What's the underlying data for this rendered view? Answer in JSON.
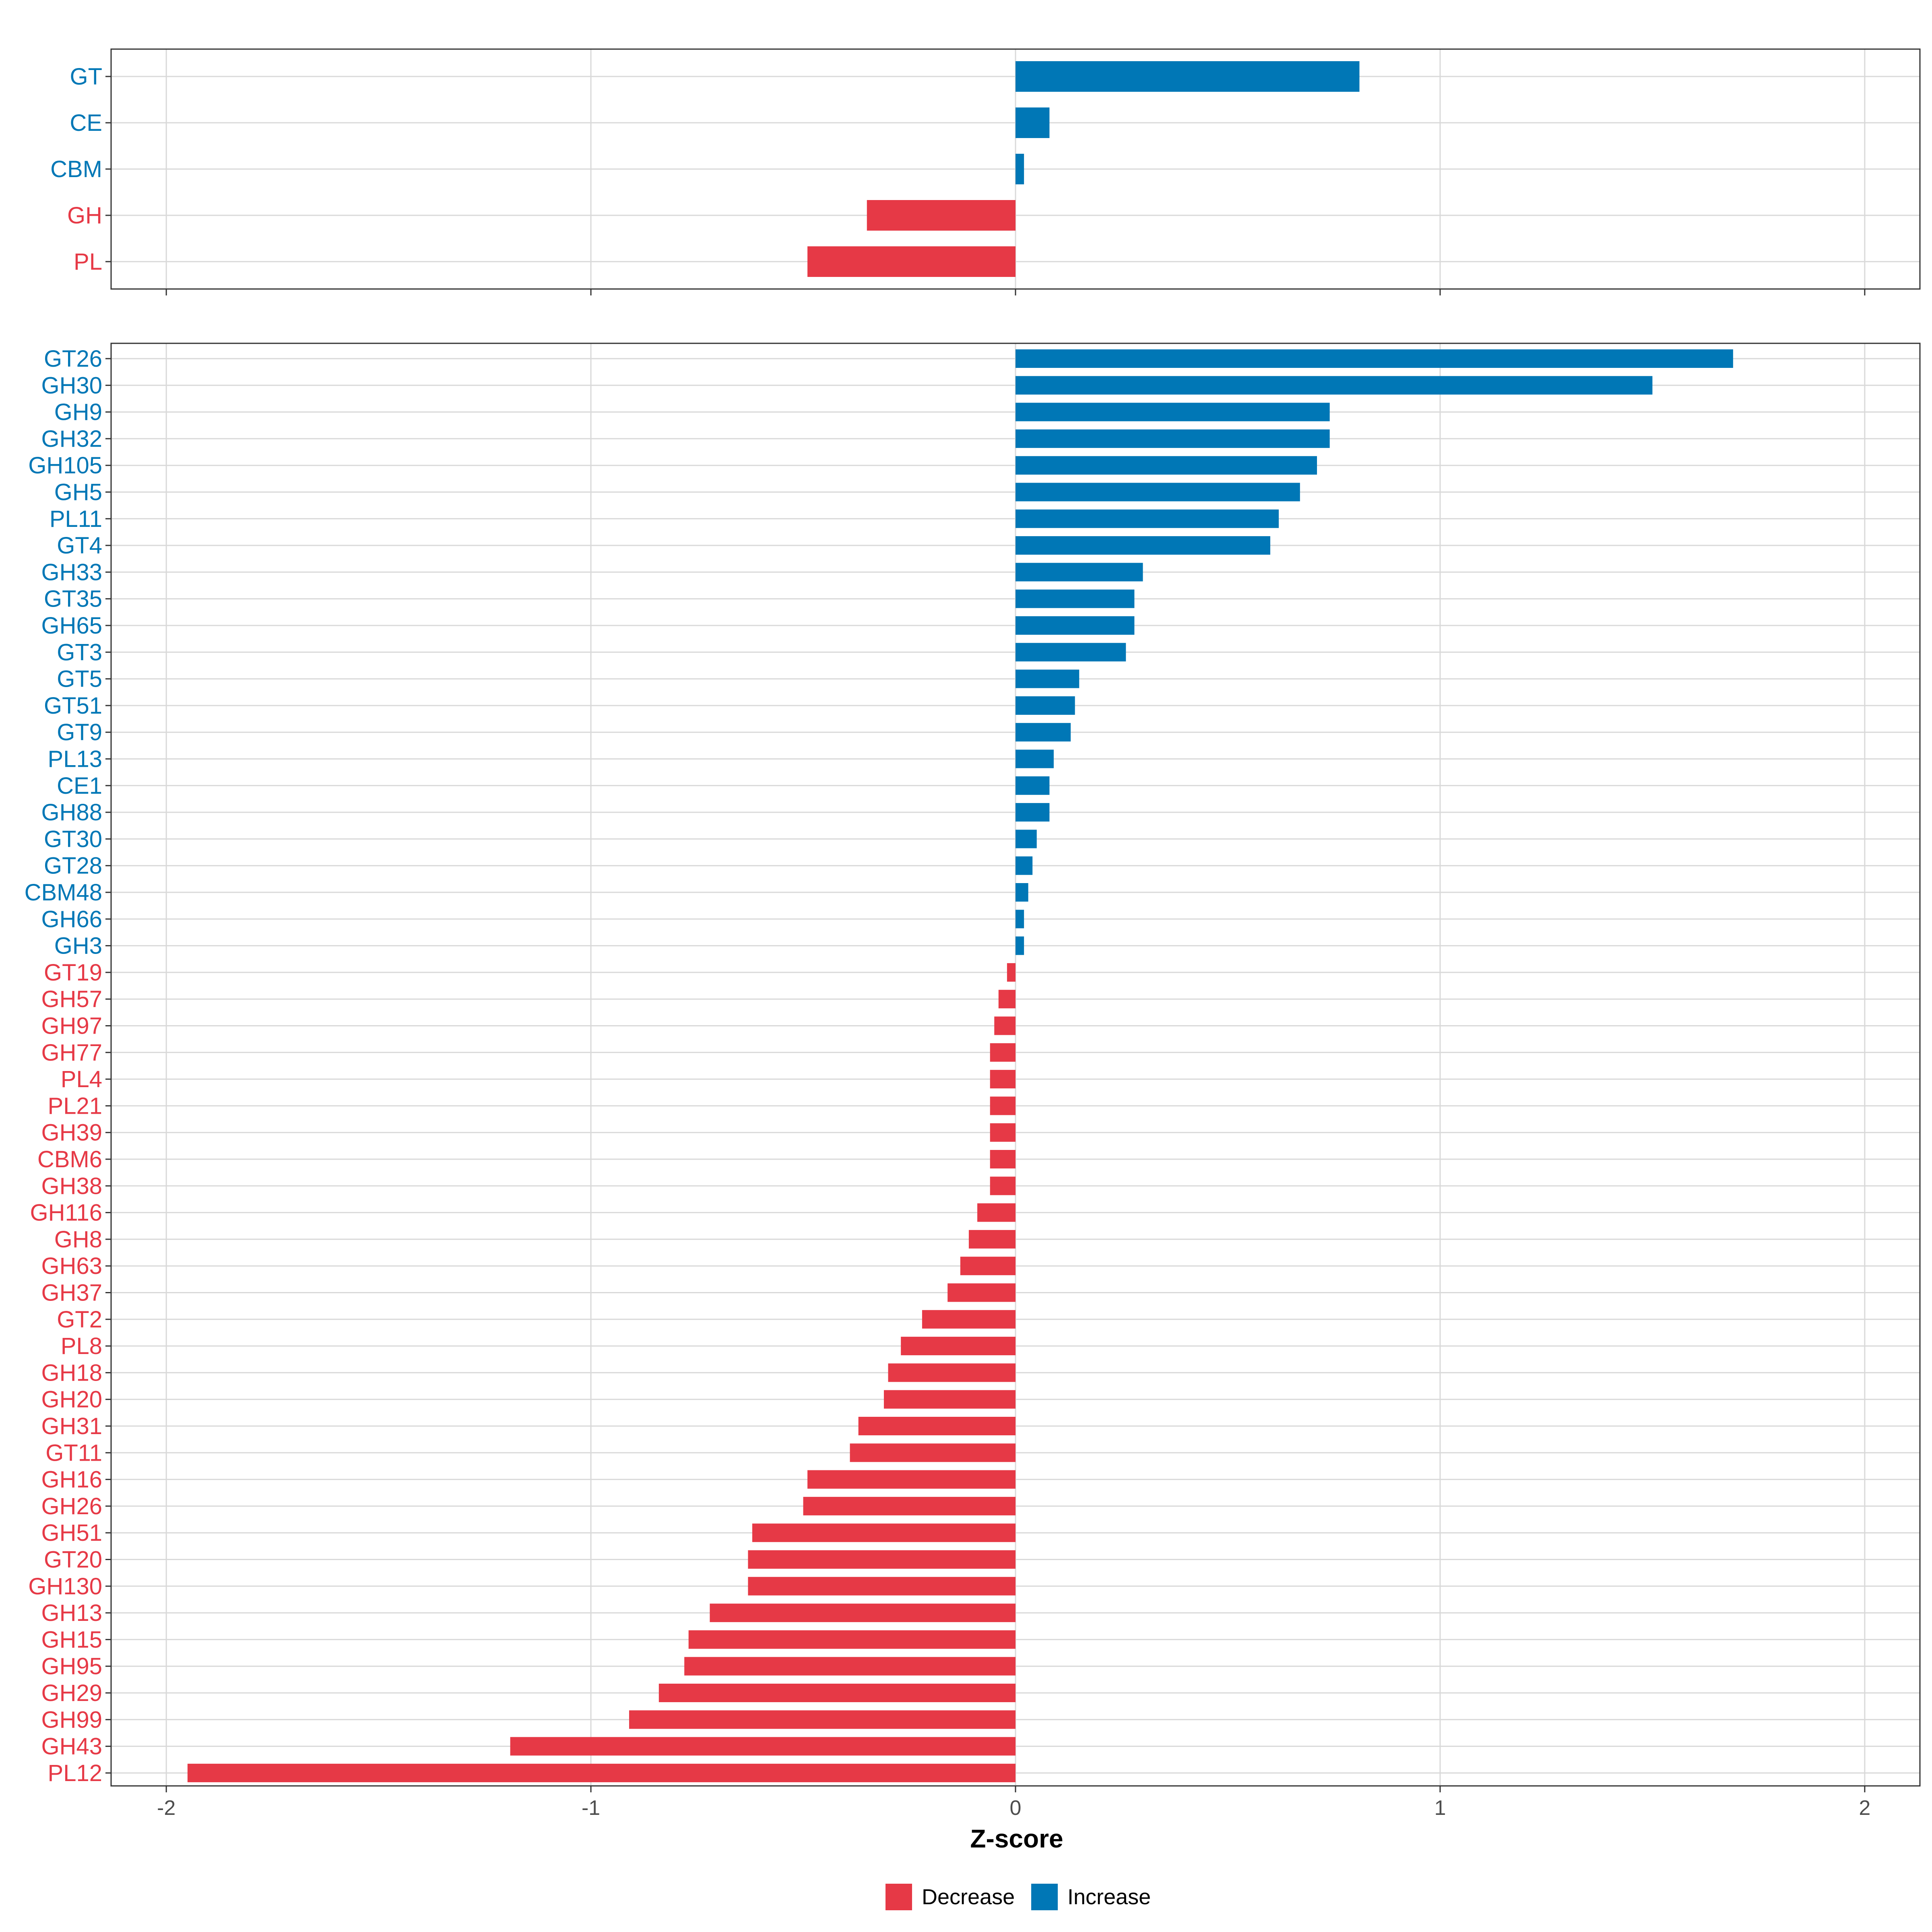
{
  "colors": {
    "decrease": "#E63946",
    "increase": "#0077B6",
    "grid": "#d9d9d9",
    "border": "#333333"
  },
  "chart_data": [
    {
      "type": "bar",
      "orientation": "horizontal",
      "panel": "top",
      "xlim": [
        -2.13,
        2.13
      ],
      "xticks": [
        -2,
        -1,
        0,
        1,
        2
      ],
      "show_tick_labels": false,
      "categories": [
        "GT",
        "CE",
        "CBM",
        "GH",
        "PL"
      ],
      "values": [
        0.81,
        0.08,
        0.02,
        -0.35,
        -0.49
      ]
    },
    {
      "type": "bar",
      "orientation": "horizontal",
      "panel": "bottom",
      "xlim": [
        -2.13,
        2.13
      ],
      "xticks": [
        -2,
        -1,
        0,
        1,
        2
      ],
      "tick_labels": [
        "-2",
        "-1",
        "0",
        "1",
        "2"
      ],
      "show_tick_labels": true,
      "xlabel": "Z-score",
      "categories": [
        "GT26",
        "GH30",
        "GH9",
        "GH32",
        "GH105",
        "GH5",
        "PL11",
        "GT4",
        "GH33",
        "GT35",
        "GH65",
        "GT3",
        "GT5",
        "GT51",
        "GT9",
        "PL13",
        "CE1",
        "GH88",
        "GT30",
        "GT28",
        "CBM48",
        "GH66",
        "GH3",
        "GT19",
        "GH57",
        "GH97",
        "GH77",
        "PL4",
        "PL21",
        "GH39",
        "CBM6",
        "GH38",
        "GH116",
        "GH8",
        "GH63",
        "GH37",
        "GT2",
        "PL8",
        "GH18",
        "GH20",
        "GH31",
        "GT11",
        "GH16",
        "GH26",
        "GH51",
        "GT20",
        "GH130",
        "GH13",
        "GH15",
        "GH95",
        "GH29",
        "GH99",
        "GH43",
        "PL12"
      ],
      "values": [
        1.69,
        1.5,
        0.74,
        0.74,
        0.71,
        0.67,
        0.62,
        0.6,
        0.3,
        0.28,
        0.28,
        0.26,
        0.15,
        0.14,
        0.13,
        0.09,
        0.08,
        0.08,
        0.05,
        0.04,
        0.03,
        0.02,
        0.02,
        -0.02,
        -0.04,
        -0.05,
        -0.06,
        -0.06,
        -0.06,
        -0.06,
        -0.06,
        -0.06,
        -0.09,
        -0.11,
        -0.13,
        -0.16,
        -0.22,
        -0.27,
        -0.3,
        -0.31,
        -0.37,
        -0.39,
        -0.49,
        -0.5,
        -0.62,
        -0.63,
        -0.63,
        -0.72,
        -0.77,
        -0.78,
        -0.84,
        -0.91,
        -1.19,
        -1.95
      ]
    }
  ],
  "legend": {
    "position": "bottom",
    "items": [
      {
        "label": "Decrease",
        "color": "#E63946"
      },
      {
        "label": "Increase",
        "color": "#0077B6"
      }
    ]
  }
}
